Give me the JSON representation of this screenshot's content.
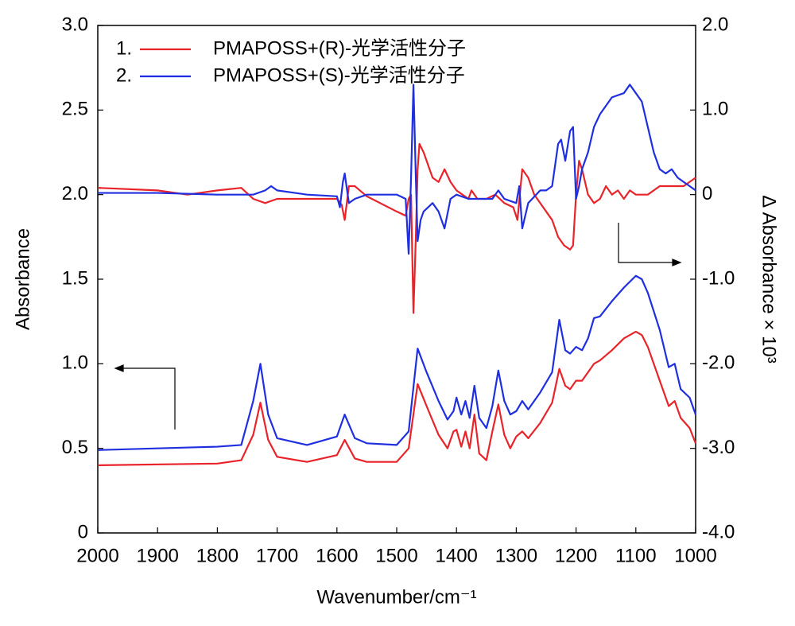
{
  "chart_data": {
    "type": "line",
    "x_label": "Wavenumber/cm⁻¹",
    "y_label": "Absorbance",
    "y2_label": "Δ Absorbance × 10³",
    "xlim": [
      2000,
      1000
    ],
    "xticks": [
      2000,
      1900,
      1800,
      1700,
      1600,
      1500,
      1400,
      1300,
      1200,
      1100,
      1000
    ],
    "ylim": [
      0,
      3
    ],
    "yticks": [
      0,
      {
        "value": 0.5,
        "label": "0.5"
      },
      {
        "value": 1,
        "label": "1.0"
      },
      {
        "value": 1.5,
        "label": "1.5"
      },
      {
        "value": 2,
        "label": "2.0"
      },
      {
        "value": 2.5,
        "label": "2.5"
      },
      {
        "value": 3,
        "label": "3.0"
      }
    ],
    "y2lim": [
      -4,
      2
    ],
    "y2ticks": [
      {
        "value": -4,
        "label": "-4.0"
      },
      {
        "value": -3,
        "label": "-3.0"
      },
      {
        "value": -2,
        "label": "-2.0"
      },
      {
        "value": -1,
        "label": "-1.0"
      },
      0,
      {
        "value": 1,
        "label": "1.0"
      },
      {
        "value": 2,
        "label": "2.0"
      }
    ],
    "series": [
      {
        "number": "1.",
        "name": "PMAPOSS+(R)-光学活性分子",
        "color": "#e8242a",
        "x": [
          2000,
          1800,
          1760,
          1740,
          1728,
          1715,
          1700,
          1650,
          1600,
          1587,
          1570,
          1550,
          1500,
          1480,
          1465,
          1450,
          1430,
          1415,
          1405,
          1400,
          1392,
          1385,
          1378,
          1370,
          1362,
          1350,
          1340,
          1330,
          1320,
          1310,
          1300,
          1290,
          1280,
          1260,
          1240,
          1228,
          1218,
          1210,
          1200,
          1190,
          1180,
          1170,
          1160,
          1140,
          1120,
          1100,
          1090,
          1080,
          1060,
          1045,
          1035,
          1025,
          1010,
          1000
        ],
        "values": [
          0.4,
          0.41,
          0.43,
          0.58,
          0.77,
          0.55,
          0.45,
          0.42,
          0.46,
          0.55,
          0.44,
          0.42,
          0.42,
          0.5,
          0.88,
          0.75,
          0.58,
          0.5,
          0.6,
          0.61,
          0.51,
          0.6,
          0.5,
          0.7,
          0.47,
          0.43,
          0.6,
          0.76,
          0.58,
          0.5,
          0.57,
          0.6,
          0.56,
          0.65,
          0.77,
          0.97,
          0.87,
          0.85,
          0.9,
          0.9,
          0.95,
          1.0,
          1.02,
          1.08,
          1.15,
          1.19,
          1.17,
          1.1,
          0.9,
          0.75,
          0.78,
          0.68,
          0.62,
          0.53
        ]
      },
      {
        "number": "2.",
        "name": "PMAPOSS+(S)-光学活性分子",
        "color": "#1f2fe0",
        "x": [
          2000,
          1800,
          1760,
          1740,
          1728,
          1715,
          1700,
          1650,
          1600,
          1587,
          1570,
          1550,
          1500,
          1480,
          1465,
          1450,
          1430,
          1415,
          1405,
          1400,
          1392,
          1385,
          1378,
          1370,
          1362,
          1350,
          1340,
          1330,
          1320,
          1310,
          1300,
          1290,
          1280,
          1260,
          1240,
          1228,
          1218,
          1210,
          1200,
          1190,
          1180,
          1170,
          1160,
          1140,
          1120,
          1100,
          1090,
          1080,
          1060,
          1045,
          1035,
          1025,
          1010,
          1000
        ],
        "values": [
          0.49,
          0.51,
          0.52,
          0.78,
          1.0,
          0.7,
          0.56,
          0.52,
          0.57,
          0.7,
          0.56,
          0.53,
          0.52,
          0.6,
          1.09,
          0.95,
          0.78,
          0.67,
          0.72,
          0.8,
          0.7,
          0.78,
          0.68,
          0.87,
          0.68,
          0.62,
          0.75,
          0.96,
          0.78,
          0.7,
          0.72,
          0.78,
          0.73,
          0.83,
          0.95,
          1.26,
          1.08,
          1.06,
          1.1,
          1.08,
          1.15,
          1.27,
          1.28,
          1.37,
          1.45,
          1.52,
          1.5,
          1.42,
          1.2,
          0.98,
          1.0,
          0.85,
          0.8,
          0.7
        ]
      },
      {
        "color": "#e8242a",
        "axis": "y2",
        "x": [
          2000,
          1900,
          1850,
          1800,
          1760,
          1740,
          1720,
          1700,
          1650,
          1600,
          1592,
          1587,
          1580,
          1570,
          1550,
          1500,
          1485,
          1480,
          1476,
          1472,
          1468,
          1465,
          1462,
          1455,
          1440,
          1430,
          1420,
          1410,
          1400,
          1390,
          1380,
          1375,
          1365,
          1350,
          1335,
          1320,
          1305,
          1298,
          1290,
          1280,
          1270,
          1260,
          1250,
          1240,
          1230,
          1220,
          1210,
          1205,
          1200,
          1195,
          1190,
          1180,
          1170,
          1160,
          1150,
          1140,
          1130,
          1120,
          1110,
          1100,
          1080,
          1060,
          1040,
          1020,
          1000
        ],
        "values": [
          0.08,
          0.05,
          0.0,
          0.05,
          0.08,
          -0.05,
          -0.1,
          -0.05,
          -0.05,
          -0.05,
          -0.12,
          -0.3,
          0.1,
          0.1,
          -0.02,
          -0.2,
          -0.25,
          -0.05,
          0.0,
          -1.4,
          -0.5,
          0.3,
          0.6,
          0.5,
          0.2,
          0.15,
          0.3,
          0.15,
          0.05,
          0.0,
          -0.05,
          0.05,
          -0.05,
          -0.05,
          0.0,
          -0.1,
          -0.15,
          -0.3,
          0.3,
          0.2,
          0.0,
          -0.1,
          -0.2,
          -0.3,
          -0.5,
          -0.6,
          -0.65,
          -0.6,
          0.0,
          0.4,
          0.3,
          0.0,
          -0.1,
          -0.05,
          0.1,
          0.0,
          0.05,
          -0.05,
          0.05,
          0.0,
          0.0,
          0.1,
          0.1,
          0.1,
          0.2
        ]
      },
      {
        "color": "#1f2fe0",
        "axis": "y2",
        "x": [
          2000,
          1900,
          1800,
          1760,
          1740,
          1720,
          1710,
          1700,
          1650,
          1600,
          1595,
          1590,
          1587,
          1580,
          1570,
          1550,
          1500,
          1485,
          1480,
          1476,
          1472,
          1468,
          1465,
          1460,
          1455,
          1440,
          1430,
          1420,
          1410,
          1400,
          1380,
          1360,
          1340,
          1330,
          1320,
          1300,
          1295,
          1290,
          1280,
          1260,
          1250,
          1240,
          1230,
          1225,
          1218,
          1210,
          1205,
          1200,
          1195,
          1190,
          1180,
          1170,
          1160,
          1150,
          1140,
          1120,
          1110,
          1100,
          1090,
          1080,
          1070,
          1060,
          1050,
          1040,
          1030,
          1020,
          1010,
          1000
        ],
        "values": [
          0.02,
          0.02,
          0.0,
          0.0,
          0.0,
          0.05,
          0.1,
          0.05,
          0.0,
          -0.02,
          -0.15,
          0.15,
          0.25,
          -0.1,
          -0.05,
          0.0,
          0.0,
          -0.05,
          -0.7,
          0.2,
          1.3,
          0.2,
          -0.55,
          -0.3,
          -0.2,
          -0.1,
          -0.2,
          -0.4,
          -0.05,
          0.0,
          -0.05,
          -0.05,
          -0.05,
          0.05,
          -0.05,
          -0.1,
          0.1,
          -0.4,
          -0.1,
          0.05,
          0.05,
          0.1,
          0.6,
          0.65,
          0.4,
          0.75,
          0.8,
          -0.05,
          0.1,
          0.3,
          0.5,
          0.8,
          0.95,
          1.05,
          1.15,
          1.2,
          1.3,
          1.2,
          1.1,
          0.8,
          0.5,
          0.3,
          0.25,
          0.3,
          0.2,
          0.15,
          0.1,
          0.05
        ]
      }
    ]
  }
}
